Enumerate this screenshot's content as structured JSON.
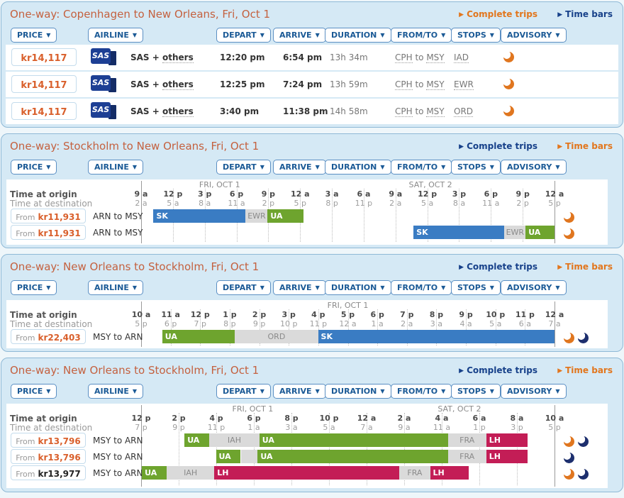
{
  "glyphs": {
    "caret": "▼",
    "arrow": "▶"
  },
  "colors": {
    "title": "#c4613f",
    "price_orange": "#d95f2b",
    "link_navy": "#17418a",
    "link_orange": "#e2761d",
    "bar_sk": "#3a7cc3",
    "bar_ua": "#6ea42e",
    "bar_lh": "#c31d56",
    "bar_layover": "#dadada",
    "moon_orange": "#e0761f",
    "moon_navy": "#1d2f6e"
  },
  "buttons": [
    "PRICE",
    "AIRLINE",
    "DEPART",
    "ARRIVE",
    "DURATION",
    "FROM/TO",
    "STOPS",
    "ADVISORY"
  ],
  "panels": [
    {
      "type": "table",
      "title": "One-way: Copenhagen to New Orleans, Fri, Oct 1",
      "links": {
        "complete_trips": "Complete trips",
        "time_bars": "Time bars",
        "active": "complete"
      },
      "rows": [
        {
          "price": "kr14,117",
          "price_color": "orange",
          "logo": "SAS",
          "airline_prefix": "SAS + ",
          "airline_link": "others",
          "depart": "12:20 pm",
          "arrive": "6:54 pm",
          "duration": "13h 34m",
          "from": "CPH",
          "to": "MSY",
          "stops": "IAD",
          "advisories": [
            "orange-moon"
          ]
        },
        {
          "price": "kr14,117",
          "price_color": "orange",
          "logo": "SAS",
          "airline_prefix": "SAS + ",
          "airline_link": "others",
          "depart": "12:25 pm",
          "arrive": "7:24 pm",
          "duration": "13h 59m",
          "from": "CPH",
          "to": "MSY",
          "stops": "EWR",
          "advisories": [
            "orange-moon"
          ]
        },
        {
          "price": "kr14,117",
          "price_color": "orange",
          "logo": "SAS",
          "airline_prefix": "SAS + ",
          "airline_link": "others",
          "depart": "3:40 pm",
          "arrive": "11:38 pm",
          "duration": "14h 58m",
          "from": "CPH",
          "to": "MSY",
          "stops": "ORD",
          "advisories": [
            "orange-moon"
          ]
        }
      ]
    },
    {
      "type": "timebars",
      "title": "One-way: Stockholm to New Orleans, Fri, Oct 1",
      "links": {
        "complete_trips": "Complete trips",
        "time_bars": "Time bars",
        "active": "time"
      },
      "axis": {
        "origin_label": "Time at origin",
        "destination_label": "Time at destination",
        "day_labels": [
          {
            "text": "FRI, OCT 1",
            "pct": 19
          },
          {
            "text": "SAT, OCT 2",
            "pct": 70
          }
        ],
        "origin_ticks": [
          "9 a",
          "12 p",
          "3 p",
          "6 p",
          "9 p",
          "12 a",
          "3 a",
          "6 a",
          "9 a",
          "12 p",
          "3 p",
          "6 p",
          "9 p",
          "12 a"
        ],
        "destination_ticks": [
          "2 a",
          "5 a",
          "8 a",
          "11 a",
          "2 p",
          "5 p",
          "8 p",
          "11 p",
          "2 a",
          "5 a",
          "8 a",
          "11 a",
          "2 p",
          "5 p"
        ]
      },
      "rows": [
        {
          "price_prefix": "From",
          "price": "kr11,931",
          "price_color": "orange",
          "route": "ARN to MSY",
          "segments": [
            {
              "label": "SK",
              "type": "sk",
              "start": 3.0,
              "end": 25.3
            },
            {
              "label": "EWR",
              "type": "layover",
              "start": 25.3,
              "end": 30.6
            },
            {
              "label": "UA",
              "type": "ua",
              "start": 30.6,
              "end": 39.3
            }
          ],
          "advisories": [
            "orange-moon"
          ]
        },
        {
          "price_prefix": "From",
          "price": "kr11,931",
          "price_color": "orange",
          "route": "ARN to MSY",
          "segments": [
            {
              "label": "SK",
              "type": "sk",
              "start": 65.9,
              "end": 87.9
            },
            {
              "label": "EWR",
              "type": "layover",
              "start": 87.9,
              "end": 93.0
            },
            {
              "label": "UA",
              "type": "ua",
              "start": 93.0,
              "end": 100
            }
          ],
          "advisories": [
            "orange-moon"
          ]
        }
      ]
    },
    {
      "type": "timebars",
      "title": "One-way: New Orleans to Stockholm, Fri, Oct 1",
      "links": {
        "complete_trips": "Complete trips",
        "time_bars": "Time bars",
        "active": "time"
      },
      "axis": {
        "origin_label": "Time at origin",
        "destination_label": "Time at destination",
        "day_labels": [
          {
            "text": "FRI, OCT 1",
            "pct": 50
          }
        ],
        "origin_ticks": [
          "10 a",
          "11 a",
          "12 p",
          "1 p",
          "2 p",
          "3 p",
          "4 p",
          "5 p",
          "6 p",
          "7 p",
          "8 p",
          "9 p",
          "10 p",
          "11 p",
          "12 a"
        ],
        "destination_ticks": [
          "5 p",
          "6 p",
          "7 p",
          "8 p",
          "9 p",
          "10 p",
          "11 p",
          "12 a",
          "1 a",
          "2 a",
          "3 a",
          "4 a",
          "5 a",
          "6 a",
          "7 a"
        ]
      },
      "rows": [
        {
          "price_prefix": "From",
          "price": "kr22,403",
          "price_color": "orange",
          "route": "MSY to ARN",
          "segments": [
            {
              "label": "UA",
              "type": "ua",
              "start": 5.1,
              "end": 22.7
            },
            {
              "label": "ORD",
              "type": "layover",
              "start": 22.7,
              "end": 42.8
            },
            {
              "label": "SK",
              "type": "sk",
              "start": 42.8,
              "end": 100
            }
          ],
          "advisories": [
            "orange-moon",
            "navy-moon"
          ]
        }
      ]
    },
    {
      "type": "timebars",
      "title": "One-way: New Orleans to Stockholm, Fri, Oct 1",
      "links": {
        "complete_trips": "Complete trips",
        "time_bars": "Time bars",
        "active": "time"
      },
      "axis": {
        "origin_label": "Time at origin",
        "destination_label": "Time at destination",
        "day_labels": [
          {
            "text": "FRI, OCT 1",
            "pct": 27
          },
          {
            "text": "SAT, OCT 2",
            "pct": 77
          }
        ],
        "origin_ticks": [
          "12 p",
          "2 p",
          "4 p",
          "6 p",
          "8 p",
          "10 p",
          "12 a",
          "2 a",
          "4 a",
          "6 a",
          "8 a",
          "10 a"
        ],
        "destination_ticks": [
          "7 p",
          "9 p",
          "11 p",
          "1 a",
          "3 a",
          "5 a",
          "7 a",
          "9 a",
          "11 a",
          "1 p",
          "3 p",
          "5 p"
        ]
      },
      "rows": [
        {
          "price_prefix": "From",
          "price": "kr13,796",
          "price_color": "orange",
          "route": "MSY to ARN",
          "segments": [
            {
              "label": "UA",
              "type": "ua",
              "start": 10.5,
              "end": 16.5
            },
            {
              "label": "IAH",
              "type": "layover",
              "start": 16.5,
              "end": 28.6
            },
            {
              "label": "UA",
              "type": "ua",
              "start": 28.6,
              "end": 74.2
            },
            {
              "label": "FRA",
              "type": "layover",
              "start": 74.2,
              "end": 83.5
            },
            {
              "label": "LH",
              "type": "lh",
              "start": 83.5,
              "end": 93.5
            }
          ],
          "advisories": [
            "orange-moon",
            "navy-moon"
          ]
        },
        {
          "price_prefix": "From",
          "price": "kr13,796",
          "price_color": "orange",
          "route": "MSY to ARN",
          "segments": [
            {
              "label": "UA",
              "type": "ua",
              "start": 18.1,
              "end": 24.1
            },
            {
              "label": "",
              "type": "layover",
              "start": 24.1,
              "end": 28.2
            },
            {
              "label": "UA",
              "type": "ua",
              "start": 28.2,
              "end": 74.2
            },
            {
              "label": "FRA",
              "type": "layover",
              "start": 74.2,
              "end": 83.5
            },
            {
              "label": "LH",
              "type": "lh",
              "start": 83.5,
              "end": 93.5
            }
          ],
          "advisories": [
            "navy-moon"
          ]
        },
        {
          "price_prefix": "From",
          "price": "kr13,977",
          "price_color": "black",
          "route": "MSY to ARN",
          "segments": [
            {
              "label": "UA",
              "type": "ua",
              "start": 0.2,
              "end": 6.2
            },
            {
              "label": "IAH",
              "type": "layover",
              "start": 6.2,
              "end": 17.7
            },
            {
              "label": "LH",
              "type": "lh",
              "start": 17.7,
              "end": 62.5
            },
            {
              "label": "FRA",
              "type": "layover",
              "start": 62.5,
              "end": 69.9
            },
            {
              "label": "LH",
              "type": "lh",
              "start": 69.9,
              "end": 79.3
            }
          ],
          "advisories": [
            "orange-moon",
            "navy-moon"
          ]
        }
      ]
    }
  ]
}
